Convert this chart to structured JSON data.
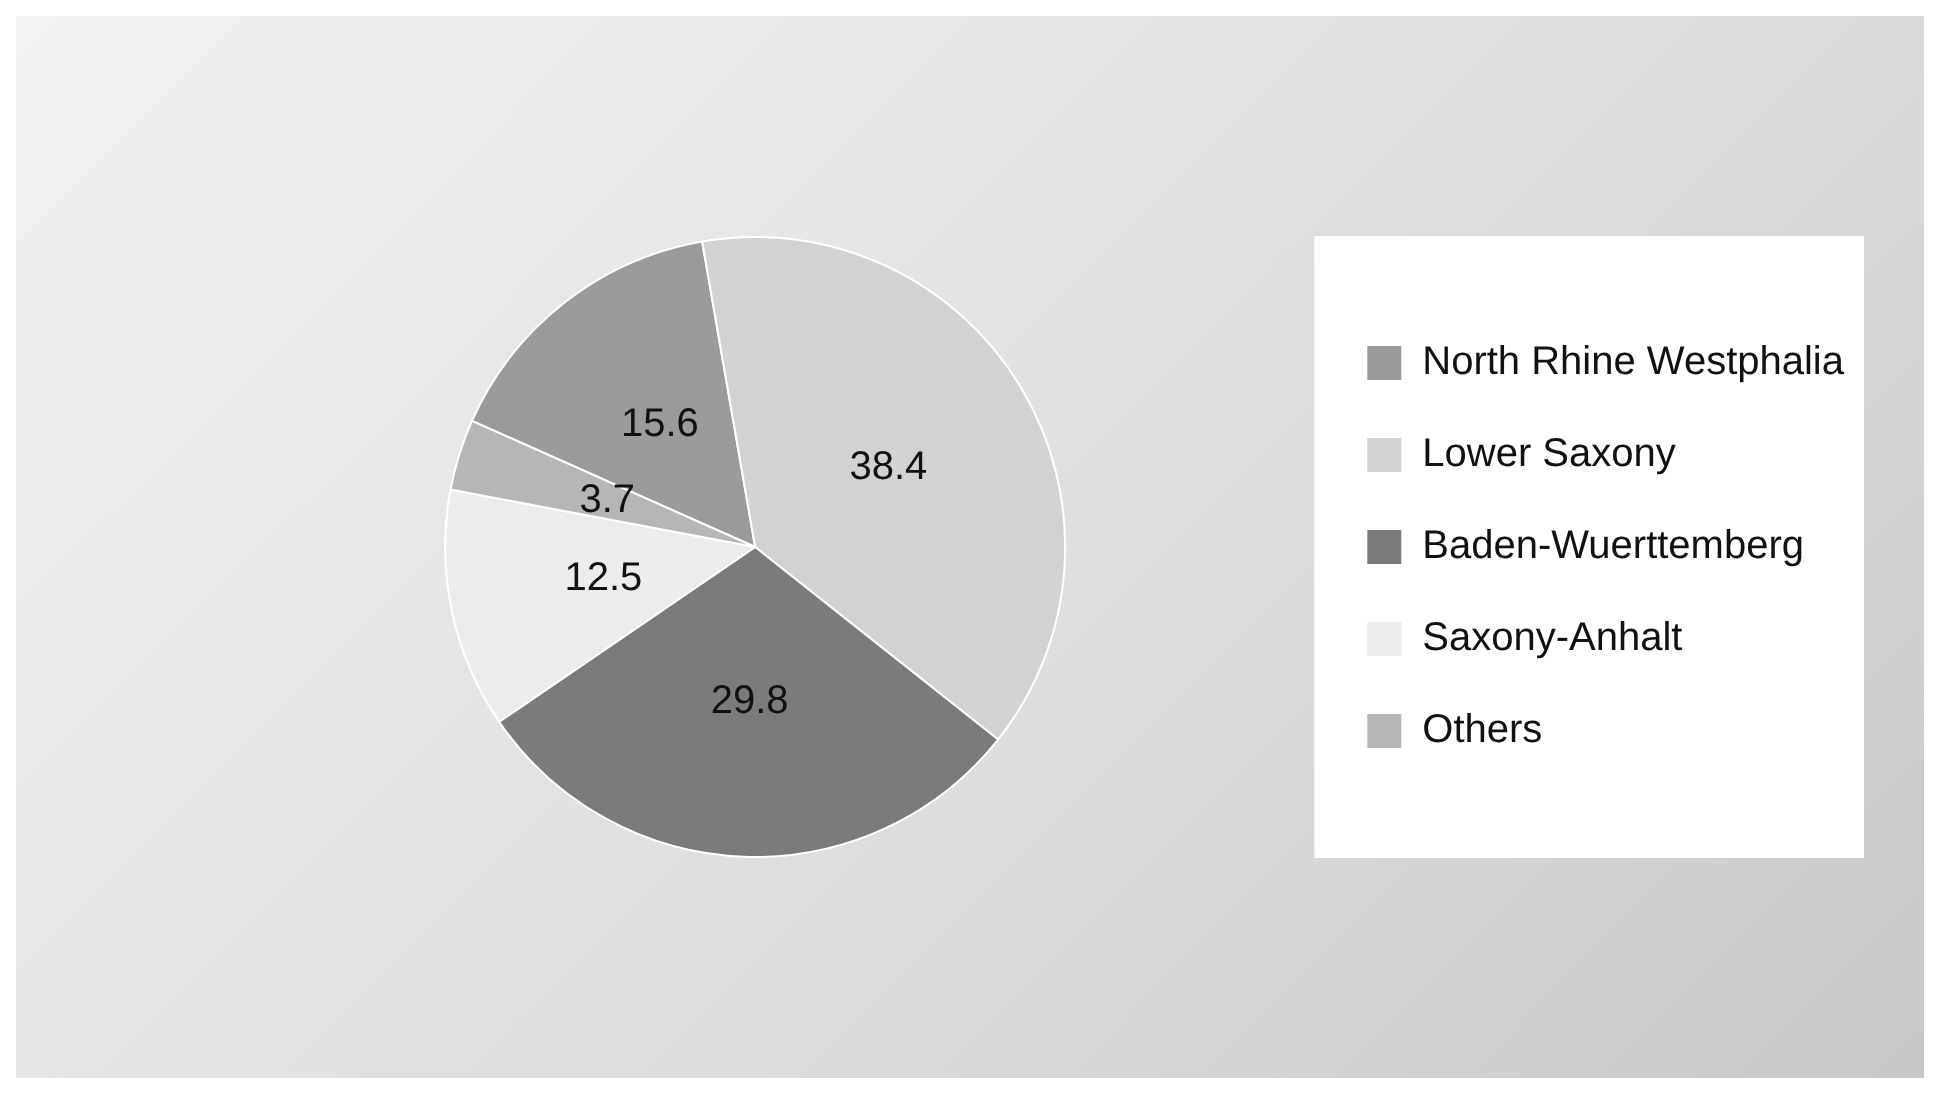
{
  "chart_data": {
    "type": "pie",
    "categories": [
      "North Rhine Westphalia",
      "Lower Saxony",
      "Baden-Wuerttemberg",
      "Saxony-Anhalt",
      "Others"
    ],
    "values": [
      15.6,
      38.4,
      29.8,
      12.5,
      3.7
    ],
    "colors": [
      "#9b9b9b",
      "#d2d2d2",
      "#7b7b7b",
      "#ececec",
      "#b6b6b6"
    ],
    "data_labels": true,
    "legend": "right"
  }
}
